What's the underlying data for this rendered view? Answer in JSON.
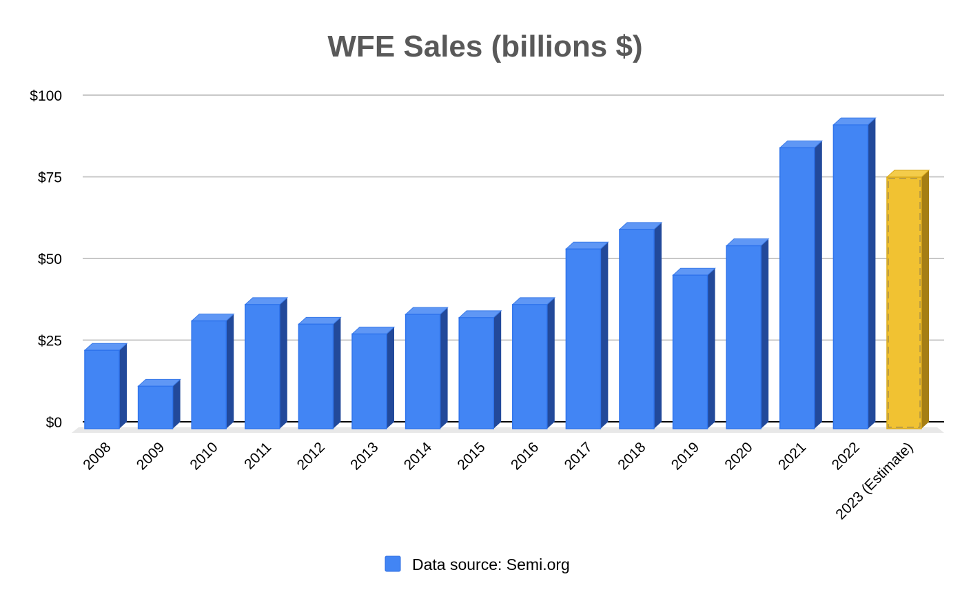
{
  "chart_data": {
    "type": "bar",
    "style": "3d-column",
    "title": "WFE Sales (billions $)",
    "xlabel": "",
    "ylabel": "",
    "ylim": [
      0,
      100
    ],
    "yticks": [
      0,
      25,
      50,
      75,
      100
    ],
    "ytick_labels": [
      "$0",
      "$25",
      "$50",
      "$75",
      "$100"
    ],
    "grid": true,
    "legend_position": "bottom",
    "categories": [
      "2008",
      "2009",
      "2010",
      "2011",
      "2012",
      "2013",
      "2014",
      "2015",
      "2016",
      "2017",
      "2018",
      "2019",
      "2020",
      "2021",
      "2022",
      "2023 (Estimate)"
    ],
    "series": [
      {
        "name": "Data source: Semi.org",
        "values": [
          24,
          13,
          33,
          38,
          32,
          29,
          35,
          34,
          38,
          55,
          61,
          47,
          56,
          86,
          93,
          77
        ],
        "colors": [
          "#4285f4",
          "#4285f4",
          "#4285f4",
          "#4285f4",
          "#4285f4",
          "#4285f4",
          "#4285f4",
          "#4285f4",
          "#4285f4",
          "#4285f4",
          "#4285f4",
          "#4285f4",
          "#4285f4",
          "#4285f4",
          "#4285f4",
          "#f1c232"
        ]
      }
    ],
    "annotations": [
      "2023 bar highlighted in yellow as estimate"
    ]
  },
  "colors": {
    "bar": "#4285f4",
    "bar_side": "#22499a",
    "bar_top": "#5f97f5",
    "estimate": "#f1c232",
    "estimate_side": "#a57e14",
    "estimate_top": "#f4cc4a",
    "grid": "#c8c8c8",
    "title": "#595959"
  },
  "legend": {
    "label": "Data source: Semi.org"
  }
}
